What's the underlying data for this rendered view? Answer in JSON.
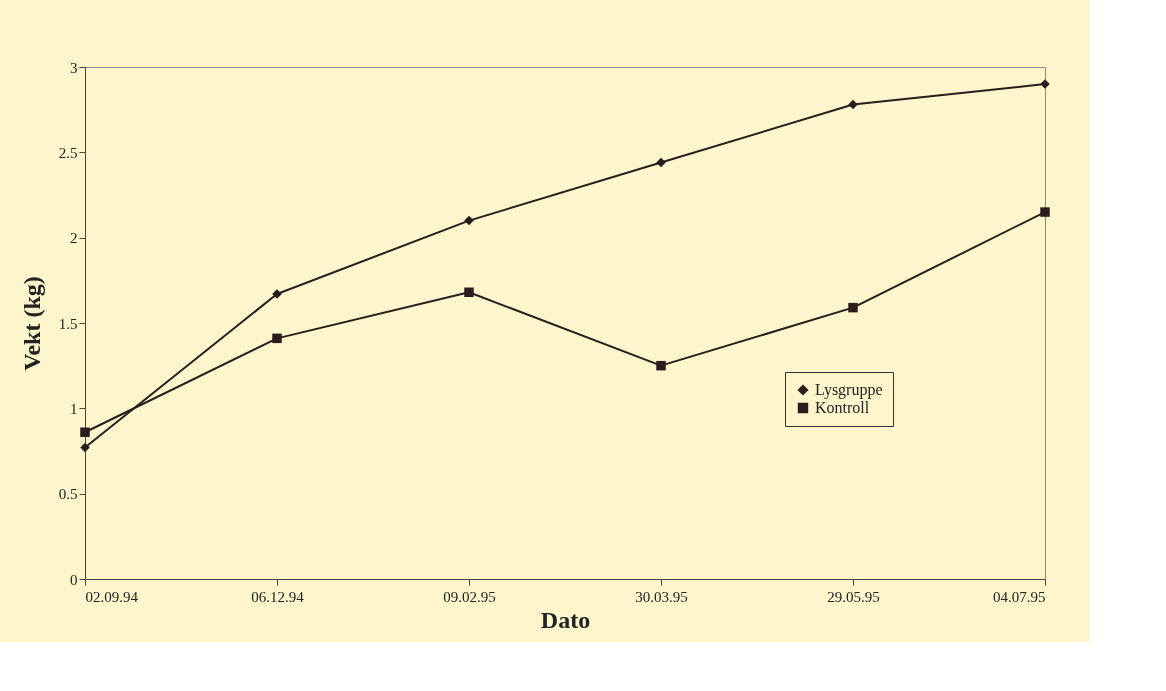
{
  "chart_data": {
    "type": "line",
    "xlabel": "Dato",
    "ylabel": "Vekt (kg)",
    "categories": [
      "02.09.94",
      "06.12.94",
      "09.02.95",
      "30.03.95",
      "29.05.95",
      "04.07.95"
    ],
    "series": [
      {
        "name": "Lysgruppe",
        "color": "#2a1c1c",
        "marker": "diamond",
        "values": [
          0.77,
          1.67,
          2.1,
          2.44,
          2.78,
          2.9
        ]
      },
      {
        "name": "Kontroll",
        "color": "#2a1c1c",
        "marker": "square",
        "values": [
          0.86,
          1.41,
          1.68,
          1.25,
          1.59,
          2.15
        ]
      }
    ],
    "ylim": [
      0,
      3
    ],
    "yticks": [
      0,
      0.5,
      1,
      1.5,
      2,
      2.5,
      3
    ],
    "grid": false,
    "legend": "right",
    "line_style": "solid"
  }
}
